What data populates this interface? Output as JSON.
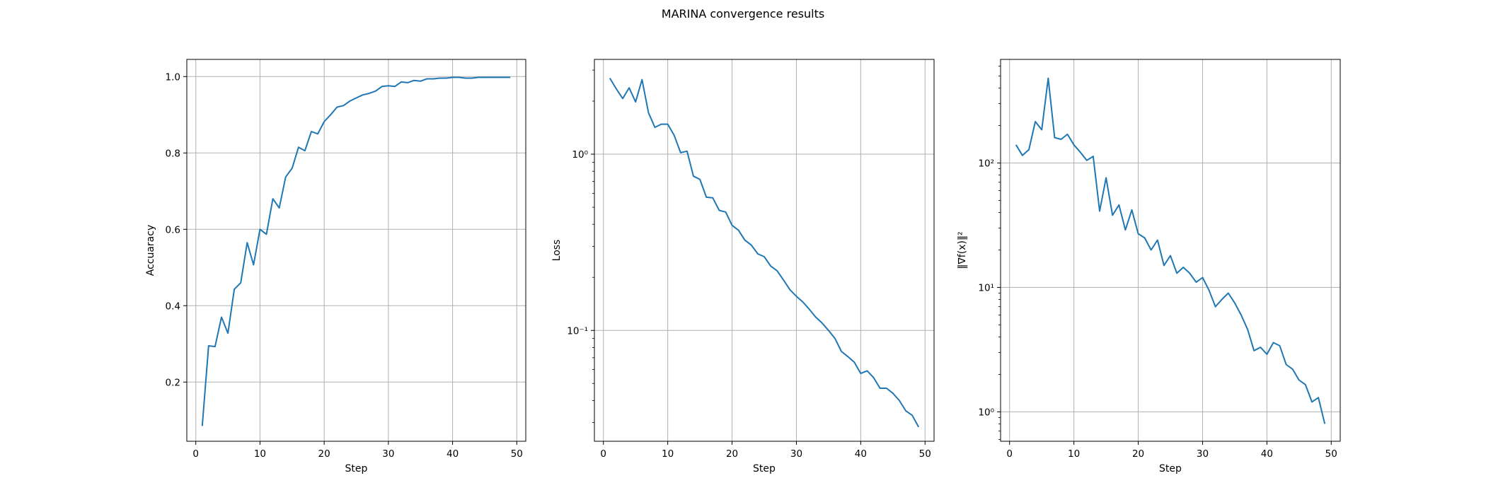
{
  "figure": {
    "title": "MARINA convergence results"
  },
  "chart_data": [
    {
      "type": "line",
      "xlabel": "Step",
      "ylabel": "Accuaracy",
      "yscale": "linear",
      "xlim": [
        -1.4,
        51.4
      ],
      "ylim": [
        0.045,
        1.045
      ],
      "xticks": [
        0,
        10,
        20,
        30,
        40,
        50
      ],
      "yticks": [
        0.2,
        0.4,
        0.6,
        0.8,
        1.0
      ],
      "ytick_labels": [
        "0.2",
        "0.4",
        "0.6",
        "0.8",
        "1.0"
      ],
      "grid": true,
      "color": "#1f77b4",
      "x": [
        1,
        2,
        3,
        4,
        5,
        6,
        7,
        8,
        9,
        10,
        11,
        12,
        13,
        14,
        15,
        16,
        17,
        18,
        19,
        20,
        21,
        22,
        23,
        24,
        25,
        26,
        27,
        28,
        29,
        30,
        31,
        32,
        33,
        34,
        35,
        36,
        37,
        38,
        39,
        40,
        41,
        42,
        43,
        44,
        45,
        46,
        47,
        48,
        49
      ],
      "y": [
        0.085,
        0.295,
        0.293,
        0.37,
        0.328,
        0.443,
        0.46,
        0.565,
        0.507,
        0.6,
        0.587,
        0.68,
        0.656,
        0.737,
        0.76,
        0.815,
        0.806,
        0.856,
        0.85,
        0.882,
        0.9,
        0.92,
        0.924,
        0.936,
        0.944,
        0.952,
        0.956,
        0.962,
        0.974,
        0.976,
        0.974,
        0.986,
        0.984,
        0.99,
        0.988,
        0.994,
        0.994,
        0.996,
        0.996,
        0.998,
        0.998,
        0.996,
        0.996,
        0.998,
        0.998,
        0.998,
        0.998,
        0.998,
        0.998
      ]
    },
    {
      "type": "line",
      "xlabel": "Step",
      "ylabel": "Loss",
      "yscale": "log",
      "xlim": [
        -1.4,
        51.4
      ],
      "ylim": [
        0.0235,
        3.45
      ],
      "xticks": [
        0,
        10,
        20,
        30,
        40,
        50
      ],
      "yticks": [
        0.1,
        1
      ],
      "ytick_labels": [
        "10⁻¹",
        "10⁰"
      ],
      "grid": true,
      "color": "#1f77b4",
      "x": [
        1,
        2,
        3,
        4,
        5,
        6,
        7,
        8,
        9,
        10,
        11,
        12,
        13,
        14,
        15,
        16,
        17,
        18,
        19,
        20,
        21,
        22,
        23,
        24,
        25,
        26,
        27,
        28,
        29,
        30,
        31,
        32,
        33,
        34,
        35,
        36,
        37,
        38,
        39,
        40,
        41,
        42,
        43,
        44,
        45,
        46,
        47,
        48,
        49
      ],
      "y": [
        2.7,
        2.35,
        2.07,
        2.38,
        1.98,
        2.65,
        1.72,
        1.42,
        1.48,
        1.48,
        1.28,
        1.02,
        1.04,
        0.75,
        0.72,
        0.57,
        0.565,
        0.48,
        0.47,
        0.395,
        0.37,
        0.325,
        0.305,
        0.272,
        0.262,
        0.232,
        0.218,
        0.193,
        0.17,
        0.156,
        0.145,
        0.132,
        0.119,
        0.11,
        0.1,
        0.09,
        0.076,
        0.071,
        0.066,
        0.057,
        0.059,
        0.054,
        0.047,
        0.047,
        0.044,
        0.04,
        0.035,
        0.033,
        0.0283
      ]
    },
    {
      "type": "line",
      "xlabel": "Step",
      "ylabel": "‖∇f(x)‖²",
      "yscale": "log",
      "xlim": [
        -1.4,
        51.4
      ],
      "ylim": [
        0.58,
        680
      ],
      "xticks": [
        0,
        10,
        20,
        30,
        40,
        50
      ],
      "yticks": [
        1,
        10,
        100
      ],
      "ytick_labels": [
        "10⁰",
        "10¹",
        "10²"
      ],
      "grid": true,
      "color": "#1f77b4",
      "x": [
        1,
        2,
        3,
        4,
        5,
        6,
        7,
        8,
        9,
        10,
        11,
        12,
        13,
        14,
        15,
        16,
        17,
        18,
        19,
        20,
        21,
        22,
        23,
        24,
        25,
        26,
        27,
        28,
        29,
        30,
        31,
        32,
        33,
        34,
        35,
        36,
        37,
        38,
        39,
        40,
        41,
        42,
        43,
        44,
        45,
        46,
        47,
        48,
        49
      ],
      "y": [
        140,
        115,
        128,
        215,
        185,
        480,
        160,
        155,
        170,
        140,
        122,
        105,
        113,
        41,
        76,
        38,
        46,
        29,
        42,
        27,
        25,
        20,
        24,
        15,
        18,
        13,
        14.5,
        13,
        11,
        12,
        9.5,
        7,
        8,
        9,
        7.5,
        6,
        4.6,
        3.1,
        3.3,
        2.9,
        3.6,
        3.4,
        2.4,
        2.2,
        1.8,
        1.65,
        1.2,
        1.3,
        0.8
      ]
    }
  ]
}
